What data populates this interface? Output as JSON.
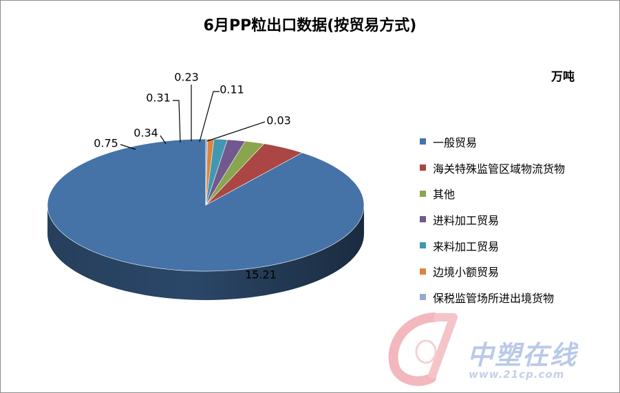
{
  "chart_data": {
    "type": "pie",
    "title": "6月PP粒出口数据(按贸易方式)",
    "unit": "万吨",
    "legend_position": "right",
    "slices": [
      {
        "label": "一般贸易",
        "value": 15.21,
        "value_label": "15.21",
        "color": "#4572a7"
      },
      {
        "label": "海关特殊监管区域物流货物",
        "value": 0.75,
        "value_label": "0.75",
        "color": "#aa4643"
      },
      {
        "label": "其他",
        "value": 0.34,
        "value_label": "0.34",
        "color": "#89a54e"
      },
      {
        "label": "进料加工贸易",
        "value": 0.31,
        "value_label": "0.31",
        "color": "#71588f"
      },
      {
        "label": "来料加工贸易",
        "value": 0.23,
        "value_label": "0.23",
        "color": "#4198af"
      },
      {
        "label": "边境小额贸易",
        "value": 0.11,
        "value_label": "0.11",
        "color": "#db843d"
      },
      {
        "label": "保税监管场所进出境货物",
        "value": 0.03,
        "value_label": "0.03",
        "color": "#93a9cf"
      }
    ]
  },
  "watermark": {
    "logo_icon": "21cp-logo-icon",
    "brand_text": "中塑在线",
    "url_text": "www.21cp.com"
  }
}
